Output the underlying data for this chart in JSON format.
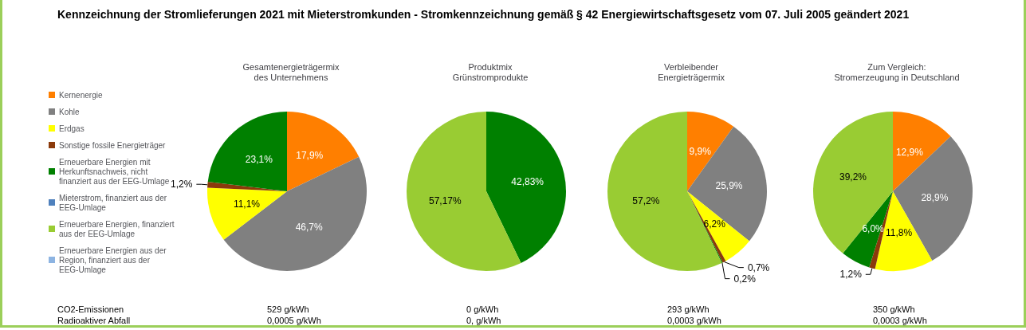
{
  "chart_data": [
    {
      "type": "pie",
      "title": "Gesamtenergieträgermix\ndes Unternehmens",
      "legend": "left",
      "categories": [
        "Kernenergie",
        "Kohle",
        "Erdgas",
        "Sonstige fossile Energieträger",
        "Erneuerbare Energien mit Herkunftsnachweis, nicht finanziert aus der EEG-Umlage",
        "Mieterstrom, finanziert aus der EEG-Umlage",
        "Erneuerbare Energien, finanziert aus der EEG-Umlage",
        "Erneuerbare Energien aus der Region, finanziert aus der EEG-Umlage"
      ],
      "values": [
        17.9,
        46.7,
        11.1,
        1.2,
        23.1,
        null,
        null,
        null
      ],
      "value_labels": [
        "17,9%",
        "46,7%",
        "11,1%",
        "1,2%",
        "23,1%",
        null,
        null,
        null
      ],
      "colors": [
        "#ff7f00",
        "#808080",
        "#ffff00",
        "#8b3a0b",
        "#008000",
        "#4f81bd",
        "#99cc33",
        "#8db4e2"
      ],
      "annotations": [
        "529 g/kWh",
        "0,0005 g/kWh"
      ]
    },
    {
      "type": "pie",
      "title": "Produktmix\nGrünstromprodukte",
      "categories": [
        null,
        null,
        null,
        null,
        null,
        null,
        null,
        null
      ],
      "values": [
        null,
        null,
        null,
        null,
        42.83,
        null,
        57.17,
        null
      ],
      "value_labels": [
        null,
        null,
        null,
        null,
        "42,83%",
        null,
        "57,17%",
        null
      ],
      "colors": [
        "#ff7f00",
        "#808080",
        "#ffff00",
        "#8b3a0b",
        "#008000",
        "#4f81bd",
        "#99cc33",
        "#8db4e2"
      ],
      "annotations": [
        "0 g/kWh",
        "0, g/kWh"
      ]
    },
    {
      "type": "pie",
      "title": "Verbleibender\nEnergieträgermix",
      "categories": [
        null,
        null,
        null,
        null,
        null,
        null,
        null,
        null
      ],
      "values": [
        9.9,
        25.9,
        6.2,
        0.7,
        0.2,
        null,
        57.2,
        null
      ],
      "value_labels": [
        "9,9%",
        "25,9%",
        "6,2%",
        "0,7%",
        "0,2%",
        null,
        "57,2%",
        null
      ],
      "colors": [
        "#ff7f00",
        "#808080",
        "#ffff00",
        "#8b3a0b",
        "#008000",
        "#4f81bd",
        "#99cc33",
        "#8db4e2"
      ],
      "annotations": [
        "293 g/kWh",
        "0,0003 g/kWh"
      ]
    },
    {
      "type": "pie",
      "title": "Zum Vergleich:\nStromerzeugung in Deutschland",
      "categories": [
        null,
        null,
        null,
        null,
        null,
        null,
        null,
        null
      ],
      "values": [
        12.9,
        28.9,
        11.8,
        1.2,
        6.0,
        null,
        39.2,
        null
      ],
      "value_labels": [
        "12,9%",
        "28,9%",
        "11,8%",
        "1,2%",
        "6,0%",
        null,
        "39,2%",
        null
      ],
      "colors": [
        "#ff7f00",
        "#808080",
        "#ffff00",
        "#8b3a0b",
        "#008000",
        "#4f81bd",
        "#99cc33",
        "#8db4e2"
      ],
      "annotations": [
        "350 g/kWh",
        "0,0003 g/kWh"
      ]
    },
    {
      "type": "other",
      "title": "Kennzeichnung der Stromlieferungen 2021 mit Mieterstromkunden - Stromkennzeichnung gemäß § 42 Energiewirtschaftsgesetz vom 07. Juli 2005 geändert 2021",
      "annotations": [
        "CO2-Emissionen",
        "Radioaktiver Abfall"
      ]
    }
  ]
}
